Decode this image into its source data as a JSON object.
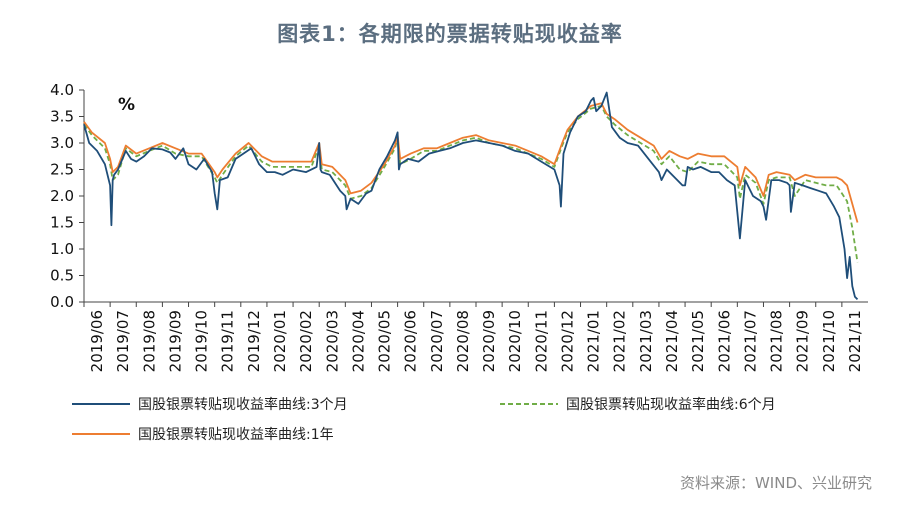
{
  "header": {
    "title": "图表1：各期限的票据转贴现收益率"
  },
  "footer": {
    "source": "资料来源：WIND、兴业研究"
  },
  "chart_data": {
    "type": "line",
    "title": "图表1：各期限的票据转贴现收益率",
    "ylabel": "%",
    "xlabel": "",
    "ylim": [
      0.0,
      4.0
    ],
    "yticks": [
      "0.0",
      "0.5",
      "1.0",
      "1.5",
      "2.0",
      "2.5",
      "3.0",
      "3.5",
      "4.0"
    ],
    "categories": [
      "2019/06",
      "2019/07",
      "2019/08",
      "2019/09",
      "2019/10",
      "2019/11",
      "2019/12",
      "2020/01",
      "2020/02",
      "2020/03",
      "2020/04",
      "2020/05",
      "2020/06",
      "2020/07",
      "2020/08",
      "2020/09",
      "2020/10",
      "2020/11",
      "2020/12",
      "2021/01",
      "2021/02",
      "2021/03",
      "2021/04",
      "2021/05",
      "2021/06",
      "2021/07",
      "2021/08",
      "2021/09",
      "2021/10",
      "2021/11"
    ],
    "legend_position": "bottom",
    "grid": false,
    "series": [
      {
        "name": "国股银票转贴现收益率曲线:3个月",
        "color": "#1f4e79",
        "style": "solid",
        "x": [
          0,
          0.2,
          0.5,
          0.8,
          1.0,
          1.05,
          1.1,
          1.15,
          1.3,
          1.6,
          1.8,
          2.0,
          2.3,
          2.6,
          3.0,
          3.3,
          3.5,
          3.8,
          4.0,
          4.3,
          4.6,
          4.9,
          5.0,
          5.1,
          5.2,
          5.5,
          5.8,
          6.1,
          6.4,
          6.7,
          7.0,
          7.3,
          7.6,
          8.0,
          8.5,
          8.9,
          9.0,
          9.05,
          9.1,
          9.4,
          9.8,
          10.0,
          10.05,
          10.2,
          10.5,
          10.8,
          11.0,
          11.3,
          11.6,
          11.9,
          12.0,
          12.05,
          12.1,
          12.4,
          12.8,
          13.2,
          13.6,
          14.0,
          14.5,
          15.0,
          15.5,
          16.0,
          16.5,
          17.0,
          17.5,
          18.0,
          18.2,
          18.25,
          18.35,
          18.6,
          18.9,
          19.2,
          19.4,
          19.5,
          19.6,
          19.8,
          20.0,
          20.2,
          20.5,
          20.8,
          21.2,
          21.6,
          22.0,
          22.1,
          22.3,
          22.6,
          22.9,
          23.0,
          23.1,
          23.3,
          23.6,
          24.0,
          24.3,
          24.6,
          24.9,
          25.0,
          25.1,
          25.3,
          25.6,
          25.9,
          26.0,
          26.1,
          26.3,
          26.6,
          26.9,
          27.0,
          27.05,
          27.2,
          27.5,
          27.8,
          28.1,
          28.4,
          28.7,
          28.9,
          29.0,
          29.1,
          29.2,
          29.3,
          29.4,
          29.5,
          29.6
        ],
        "values": [
          3.35,
          3.0,
          2.85,
          2.6,
          2.2,
          1.45,
          2.3,
          2.4,
          2.5,
          2.85,
          2.7,
          2.65,
          2.75,
          2.9,
          2.88,
          2.82,
          2.7,
          2.9,
          2.6,
          2.5,
          2.7,
          2.45,
          2.05,
          1.75,
          2.3,
          2.35,
          2.7,
          2.8,
          2.9,
          2.6,
          2.45,
          2.45,
          2.4,
          2.5,
          2.45,
          2.55,
          3.0,
          2.5,
          2.45,
          2.4,
          2.1,
          2.0,
          1.75,
          1.95,
          1.85,
          2.05,
          2.1,
          2.5,
          2.75,
          3.05,
          3.2,
          2.5,
          2.6,
          2.7,
          2.65,
          2.8,
          2.85,
          2.9,
          3.0,
          3.05,
          3.0,
          2.95,
          2.85,
          2.8,
          2.65,
          2.5,
          2.2,
          1.8,
          2.8,
          3.2,
          3.5,
          3.6,
          3.8,
          3.85,
          3.6,
          3.7,
          3.95,
          3.3,
          3.1,
          3.0,
          2.95,
          2.7,
          2.45,
          2.3,
          2.5,
          2.35,
          2.2,
          2.2,
          2.55,
          2.5,
          2.55,
          2.45,
          2.45,
          2.3,
          2.2,
          1.7,
          1.2,
          2.3,
          2.0,
          1.9,
          1.8,
          1.55,
          2.3,
          2.3,
          2.25,
          2.2,
          1.7,
          2.25,
          2.2,
          2.15,
          2.1,
          2.05,
          1.8,
          1.6,
          1.3,
          1.0,
          0.45,
          0.85,
          0.3,
          0.1,
          0.05
        ]
      },
      {
        "name": "国股银票转贴现收益率曲线:6个月",
        "color": "#70ad47",
        "style": "dashed",
        "x": [
          0,
          0.3,
          0.8,
          1.0,
          1.1,
          1.3,
          1.6,
          2.0,
          2.5,
          3.0,
          3.5,
          4.0,
          4.5,
          5.0,
          5.1,
          5.3,
          5.8,
          6.3,
          6.8,
          7.2,
          7.7,
          8.2,
          8.7,
          9.0,
          9.1,
          9.5,
          10.0,
          10.2,
          10.6,
          11.0,
          11.5,
          11.9,
          12.0,
          12.1,
          12.5,
          13.0,
          13.5,
          14.0,
          14.5,
          15.0,
          15.5,
          16.0,
          16.5,
          17.0,
          17.5,
          18.0,
          18.3,
          18.5,
          18.9,
          19.4,
          19.8,
          20.0,
          20.3,
          20.8,
          21.3,
          21.8,
          22.1,
          22.4,
          22.8,
          23.1,
          23.5,
          24.0,
          24.5,
          25.0,
          25.1,
          25.3,
          25.7,
          26.0,
          26.2,
          26.5,
          27.0,
          27.2,
          27.6,
          28.0,
          28.4,
          28.8,
          29.0,
          29.2,
          29.4,
          29.6
        ],
        "values": [
          3.35,
          3.15,
          2.9,
          2.6,
          2.3,
          2.4,
          2.9,
          2.75,
          2.85,
          2.95,
          2.8,
          2.75,
          2.75,
          2.35,
          2.25,
          2.4,
          2.75,
          2.95,
          2.65,
          2.55,
          2.55,
          2.55,
          2.55,
          2.95,
          2.5,
          2.45,
          2.2,
          1.95,
          2.0,
          2.15,
          2.55,
          2.9,
          3.1,
          2.6,
          2.7,
          2.85,
          2.85,
          2.95,
          3.05,
          3.1,
          3.0,
          2.95,
          2.9,
          2.8,
          2.7,
          2.55,
          2.95,
          3.2,
          3.45,
          3.65,
          3.7,
          3.5,
          3.35,
          3.15,
          3.0,
          2.85,
          2.6,
          2.75,
          2.5,
          2.45,
          2.65,
          2.6,
          2.6,
          2.35,
          1.95,
          2.4,
          2.25,
          1.85,
          2.3,
          2.35,
          2.35,
          2.0,
          2.3,
          2.25,
          2.2,
          2.2,
          2.05,
          1.9,
          1.4,
          0.75
        ]
      },
      {
        "name": "国股银票转贴现收益率曲线:1年",
        "color": "#ed7d31",
        "style": "solid",
        "x": [
          0,
          0.3,
          0.8,
          1.0,
          1.1,
          1.3,
          1.6,
          2.0,
          2.5,
          3.0,
          3.5,
          4.0,
          4.5,
          5.0,
          5.1,
          5.3,
          5.8,
          6.3,
          6.8,
          7.2,
          7.7,
          8.2,
          8.7,
          9.0,
          9.1,
          9.5,
          10.0,
          10.2,
          10.6,
          11.0,
          11.5,
          11.9,
          12.0,
          12.1,
          12.5,
          13.0,
          13.5,
          14.0,
          14.5,
          15.0,
          15.5,
          16.0,
          16.5,
          17.0,
          17.5,
          18.0,
          18.3,
          18.5,
          18.9,
          19.4,
          19.8,
          20.0,
          20.3,
          20.8,
          21.3,
          21.8,
          22.1,
          22.4,
          22.8,
          23.1,
          23.5,
          24.0,
          24.5,
          25.0,
          25.1,
          25.3,
          25.7,
          26.0,
          26.2,
          26.5,
          27.0,
          27.2,
          27.6,
          28.0,
          28.4,
          28.8,
          29.0,
          29.2,
          29.4,
          29.6
        ],
        "values": [
          3.4,
          3.2,
          3.0,
          2.7,
          2.45,
          2.55,
          2.95,
          2.8,
          2.9,
          3.0,
          2.9,
          2.8,
          2.8,
          2.45,
          2.35,
          2.5,
          2.8,
          3.0,
          2.75,
          2.65,
          2.65,
          2.65,
          2.65,
          3.0,
          2.6,
          2.55,
          2.3,
          2.05,
          2.1,
          2.25,
          2.6,
          2.95,
          3.15,
          2.7,
          2.8,
          2.9,
          2.9,
          3.0,
          3.1,
          3.15,
          3.05,
          3.0,
          2.95,
          2.85,
          2.75,
          2.6,
          3.0,
          3.25,
          3.5,
          3.7,
          3.75,
          3.55,
          3.45,
          3.25,
          3.1,
          2.95,
          2.7,
          2.85,
          2.75,
          2.7,
          2.8,
          2.75,
          2.75,
          2.55,
          2.2,
          2.55,
          2.35,
          2.0,
          2.4,
          2.45,
          2.4,
          2.3,
          2.4,
          2.35,
          2.35,
          2.35,
          2.3,
          2.2,
          1.85,
          1.5
        ]
      }
    ]
  }
}
